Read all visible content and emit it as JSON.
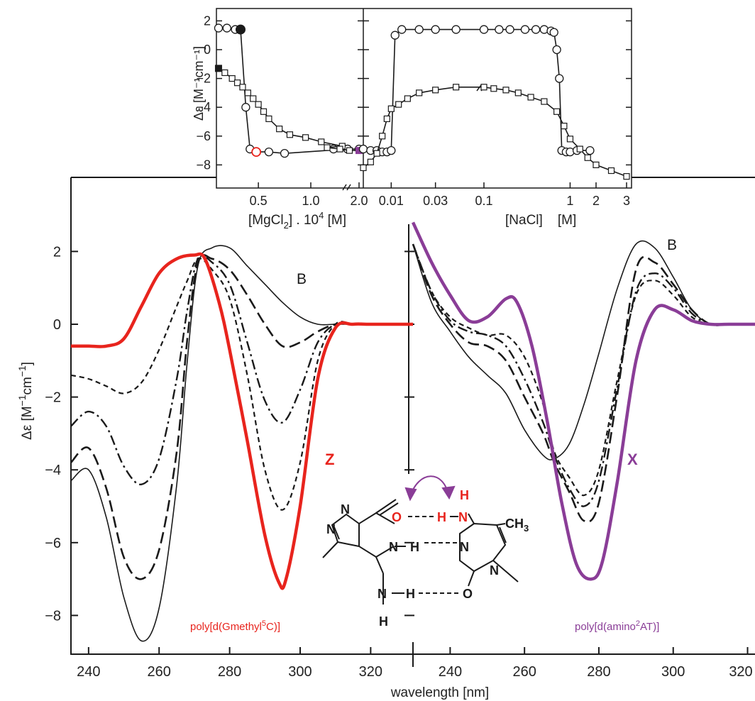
{
  "colors": {
    "z": "#e8241d",
    "x": "#8a3d97",
    "ink": "#1a1a1a"
  },
  "main": {
    "ylabel_base": "Δε [M",
    "ylabel_sup1": "−1",
    "ylabel_mid": "cm",
    "ylabel_sup2": "−1",
    "ylabel_end": "]",
    "xlabel": "wavelength [nm]",
    "yticks": [
      "2",
      "0",
      "−2",
      "−4",
      "−6",
      "−8"
    ]
  },
  "inset": {
    "ylabel": "Δε [M⁻¹cm⁻¹]",
    "yticks": [
      "2",
      "0",
      "−2",
      "−4",
      "−6",
      "−8"
    ],
    "mg_xticks": [
      "0.5",
      "1.0",
      "2.0"
    ],
    "mg_xlabel_a": "[MgCl",
    "mg_xlabel_sub": "2",
    "mg_xlabel_b": "] . 10",
    "mg_xlabel_sup": "4",
    "mg_xlabel_c": " [M]",
    "na_xticks": [
      "0.01",
      "0.03",
      "0.1",
      "1",
      "2",
      "3"
    ],
    "na_xlabel": "[NaCl]    [M]"
  },
  "structure": {
    "o_label": "O",
    "h_label": "H",
    "n_label": "N",
    "ch3_label": "CH",
    "ch3_sub": "3",
    "n_left": "N",
    "n_mid": "N",
    "h_mid": "H",
    "n_right": "N",
    "n_bottom": "N",
    "h_bottom": "H",
    "h_nh2": "H",
    "o_bottom": "O",
    "n_ring": "N",
    "n_ring2": "N",
    "n_top_h": "H"
  },
  "chart_data": [
    {
      "type": "line",
      "title": "",
      "xlabel": "wavelength [nm]",
      "ylabel": "Δε [M⁻¹cm⁻¹]",
      "xlim": [
        235,
        332
      ],
      "ylim": [
        -9,
        3
      ],
      "xticks": [
        "240",
        "260",
        "280",
        "300",
        "320"
      ],
      "annotation": "poly[d(Gmethyl5C)]",
      "series": [
        {
          "name": "B",
          "style": "solid-thin",
          "x": [
            235,
            240,
            245,
            250,
            255,
            260,
            265,
            268,
            271,
            275,
            280,
            285,
            290,
            295,
            300,
            305,
            310,
            315,
            320,
            332
          ],
          "y": [
            -4.3,
            -4.0,
            -5.3,
            -7.5,
            -8.7,
            -7.8,
            -4.4,
            -1.0,
            1.6,
            2.1,
            2.1,
            1.6,
            1.1,
            0.6,
            0.2,
            0.0,
            0.0,
            0.0,
            0.0,
            0.0
          ]
        },
        {
          "style": "dash",
          "x": [
            235,
            240,
            245,
            250,
            255,
            260,
            265,
            268,
            271,
            275,
            280,
            285,
            290,
            295,
            300,
            305,
            310,
            315,
            320,
            332
          ],
          "y": [
            -3.8,
            -3.4,
            -4.5,
            -6.4,
            -7.0,
            -6.2,
            -3.5,
            -0.4,
            1.7,
            1.8,
            1.5,
            0.8,
            0.0,
            -0.6,
            -0.5,
            -0.2,
            0.0,
            0.0,
            0.0,
            0.0
          ]
        },
        {
          "style": "dashdot",
          "x": [
            235,
            240,
            245,
            250,
            255,
            260,
            265,
            268,
            271,
            275,
            280,
            285,
            290,
            295,
            300,
            305,
            310,
            315,
            320,
            332
          ],
          "y": [
            -2.8,
            -2.4,
            -2.8,
            -3.9,
            -4.4,
            -3.7,
            -1.5,
            0.4,
            1.8,
            1.7,
            1.1,
            -0.5,
            -2.1,
            -2.7,
            -1.8,
            -0.5,
            0.0,
            0.0,
            0.0,
            0.0
          ]
        },
        {
          "style": "dash-short",
          "x": [
            235,
            240,
            245,
            250,
            255,
            260,
            265,
            268,
            271,
            275,
            280,
            285,
            290,
            295,
            300,
            305,
            310,
            315,
            320,
            332
          ],
          "y": [
            -1.4,
            -1.5,
            -1.7,
            -1.9,
            -1.6,
            -0.7,
            0.5,
            1.2,
            1.8,
            1.5,
            0.7,
            -1.4,
            -4.0,
            -5.1,
            -3.8,
            -1.0,
            0.0,
            0.0,
            0.0,
            0.0
          ]
        },
        {
          "name": "Z",
          "style": "red-bold",
          "x": [
            235,
            240,
            245,
            250,
            255,
            260,
            265,
            270,
            273,
            277,
            280,
            285,
            290,
            294,
            296,
            300,
            305,
            310,
            315,
            320,
            332
          ],
          "y": [
            -0.6,
            -0.6,
            -0.6,
            -0.4,
            0.5,
            1.4,
            1.8,
            1.9,
            1.8,
            0.6,
            -0.7,
            -3.2,
            -5.8,
            -7.1,
            -7.0,
            -5.0,
            -1.5,
            -0.1,
            0.0,
            0.0,
            0.0
          ]
        }
      ]
    },
    {
      "type": "line",
      "title": "",
      "xlabel": "wavelength [nm]",
      "ylabel": "",
      "xlim": [
        230,
        322
      ],
      "ylim": [
        -9,
        3
      ],
      "xticks": [
        "240",
        "260",
        "280",
        "300",
        "320"
      ],
      "annotation": "poly[d(amino2AT)]",
      "series": [
        {
          "name": "B",
          "style": "solid-thin",
          "x": [
            230,
            235,
            240,
            245,
            250,
            255,
            260,
            265,
            268,
            272,
            276,
            280,
            285,
            290,
            295,
            300,
            305,
            310,
            315,
            322
          ],
          "y": [
            2.2,
            0.6,
            -0.2,
            -0.9,
            -1.4,
            -1.9,
            -2.9,
            -3.6,
            -3.7,
            -3.3,
            -2.2,
            -0.8,
            1.0,
            2.2,
            2.1,
            1.3,
            0.4,
            0.0,
            0.0,
            0.0
          ]
        },
        {
          "style": "dash",
          "x": [
            230,
            235,
            240,
            245,
            250,
            255,
            260,
            265,
            268,
            272,
            276,
            280,
            285,
            290,
            295,
            300,
            305,
            310,
            315,
            322
          ],
          "y": [
            2.2,
            0.8,
            0.0,
            -0.5,
            -0.6,
            -1.0,
            -2.0,
            -3.0,
            -3.8,
            -4.6,
            -5.4,
            -4.9,
            -1.9,
            1.5,
            1.7,
            1.1,
            0.4,
            0.0,
            0.0,
            0.0
          ]
        },
        {
          "style": "dashdot",
          "x": [
            230,
            235,
            240,
            245,
            250,
            255,
            260,
            265,
            268,
            272,
            276,
            280,
            285,
            290,
            295,
            300,
            305,
            310,
            315,
            322
          ],
          "y": [
            2.2,
            0.9,
            0.1,
            -0.2,
            -0.3,
            -0.6,
            -1.5,
            -2.7,
            -3.6,
            -4.5,
            -5.0,
            -4.3,
            -1.7,
            0.9,
            1.4,
            1.0,
            0.3,
            0.0,
            0.0,
            0.0
          ]
        },
        {
          "style": "dash-short",
          "x": [
            230,
            235,
            240,
            245,
            250,
            255,
            260,
            265,
            268,
            272,
            276,
            280,
            285,
            290,
            295,
            300,
            305,
            310,
            315,
            322
          ],
          "y": [
            2.2,
            0.9,
            0.2,
            -0.1,
            -0.3,
            -0.3,
            -0.9,
            -2.2,
            -3.5,
            -4.2,
            -4.7,
            -4.0,
            -1.5,
            0.8,
            1.2,
            0.8,
            0.2,
            0.0,
            0.0,
            0.0
          ]
        },
        {
          "name": "X",
          "style": "purple-bold",
          "x": [
            230,
            235,
            240,
            245,
            250,
            255,
            258,
            262,
            266,
            270,
            274,
            278,
            281,
            285,
            290,
            295,
            300,
            305,
            310,
            315,
            322
          ],
          "y": [
            2.8,
            1.7,
            0.8,
            0.1,
            0.2,
            0.7,
            0.6,
            -0.6,
            -2.6,
            -4.9,
            -6.6,
            -7.0,
            -6.5,
            -4.3,
            -1.0,
            0.4,
            0.4,
            0.1,
            0.0,
            0.0,
            0.0
          ]
        }
      ]
    },
    {
      "type": "line",
      "title": "",
      "xlabel": "[MgCl2] . 10^4 [M]",
      "ylabel": "Δε [M⁻¹cm⁻¹]",
      "xlim": [
        0.1,
        2.0
      ],
      "ylim": [
        -9,
        2.5
      ],
      "series": [
        {
          "marker": "circle",
          "x": [
            0.12,
            0.2,
            0.28,
            0.33,
            0.38,
            0.42,
            0.48,
            0.6,
            0.75,
            1.35,
            1.6,
            1.82,
            2.0
          ],
          "y": [
            1.5,
            1.5,
            1.4,
            1.4,
            -4.0,
            -6.9,
            -7.1,
            -7.1,
            -7.2,
            -6.9,
            -6.9,
            -6.9,
            -6.9
          ]
        },
        {
          "marker": "square",
          "x": [
            0.12,
            0.18,
            0.25,
            0.3,
            0.35,
            0.4,
            0.45,
            0.5,
            0.55,
            0.6,
            0.7,
            0.8,
            0.95,
            1.1,
            1.3,
            1.5,
            1.7,
            1.85,
            2.0
          ],
          "y": [
            -1.3,
            -1.6,
            -2.0,
            -2.3,
            -2.6,
            -3.0,
            -3.4,
            -3.8,
            -4.3,
            -4.8,
            -5.5,
            -5.9,
            -6.1,
            -6.4,
            -6.7,
            -6.8,
            -6.9,
            -7.0,
            -7.0
          ]
        }
      ]
    },
    {
      "type": "line",
      "title": "",
      "xlabel": "[NaCl] [M]",
      "ylabel": "",
      "xlim": [
        0.005,
        3
      ],
      "ylim": [
        -9,
        2.5
      ],
      "series": [
        {
          "marker": "circle",
          "x": [
            0.005,
            0.006,
            0.007,
            0.008,
            0.009,
            0.01,
            0.011,
            0.013,
            0.02,
            0.03,
            0.05,
            0.1,
            0.15,
            0.2,
            0.3,
            0.4,
            0.5,
            0.6,
            0.65,
            0.7,
            0.75,
            0.8,
            0.9,
            1.0,
            1.2,
            1.7
          ],
          "y": [
            -6.9,
            -7.0,
            -7.0,
            -7.1,
            -7.1,
            -7.0,
            1.0,
            1.4,
            1.4,
            1.4,
            1.4,
            1.4,
            1.4,
            1.4,
            1.4,
            1.4,
            1.4,
            1.3,
            1.2,
            0.0,
            -2.0,
            -7.0,
            -7.1,
            -7.1,
            -7.0,
            -7.0
          ]
        },
        {
          "marker": "square",
          "x": [
            0.005,
            0.006,
            0.007,
            0.008,
            0.009,
            0.01,
            0.012,
            0.015,
            0.02,
            0.03,
            0.05,
            0.1,
            0.13,
            0.18,
            0.25,
            0.35,
            0.5,
            0.7,
            0.85,
            1.0,
            1.3,
            1.6,
            2.0,
            2.5,
            3.0
          ],
          "y": [
            -8.2,
            -7.8,
            -7.2,
            -6.0,
            -4.8,
            -4.1,
            -3.8,
            -3.4,
            -3.0,
            -2.8,
            -2.6,
            -2.6,
            -2.7,
            -2.8,
            -3.0,
            -3.3,
            -3.6,
            -4.3,
            -5.3,
            -6.2,
            -6.9,
            -7.5,
            -8.0,
            -8.4,
            -8.8
          ]
        }
      ]
    }
  ]
}
